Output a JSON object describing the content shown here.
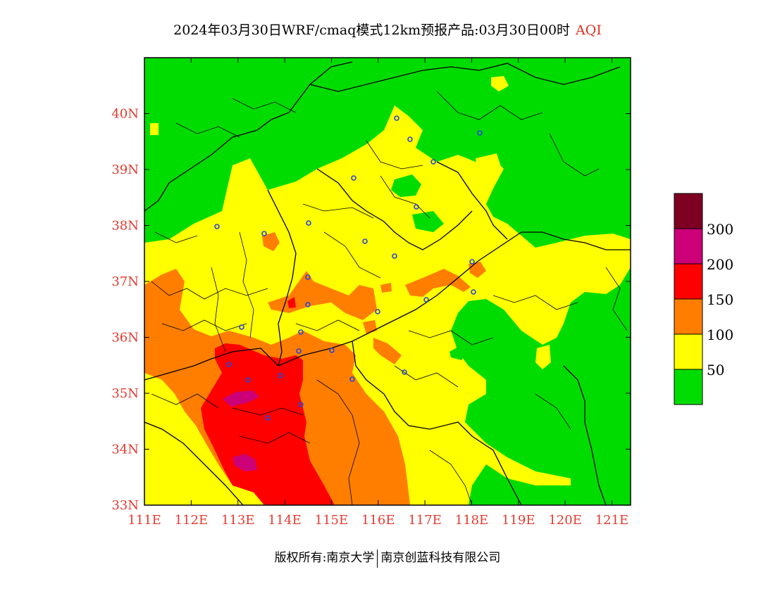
{
  "header": {
    "title": "2024年03月30日WRF/cmaq模式12km预报产品:03月30日00时",
    "aqi_label": "AQI"
  },
  "map": {
    "lon_range": [
      111,
      121.4
    ],
    "lat_range": [
      33,
      41
    ],
    "lon_ticks": [
      "111E",
      "112E",
      "113E",
      "114E",
      "115E",
      "116E",
      "117E",
      "118E",
      "119E",
      "120E",
      "121E"
    ],
    "lat_ticks": [
      "33N",
      "34N",
      "35N",
      "36N",
      "37N",
      "38N",
      "39N",
      "40N"
    ],
    "tick_color": "#e23b30"
  },
  "legend": {
    "levels": [
      {
        "label": "50",
        "color": "#00dc00"
      },
      {
        "label": "100",
        "color": "#ffff00"
      },
      {
        "label": "150",
        "color": "#ff7e00"
      },
      {
        "label": "200",
        "color": "#ff0000"
      },
      {
        "label": "300",
        "color": "#cc0077"
      },
      {
        "label": "",
        "color": "#7e0023"
      }
    ]
  },
  "footer": {
    "left": "版权所有:南京大学",
    "right": "南京创蓝科技有限公司"
  }
}
